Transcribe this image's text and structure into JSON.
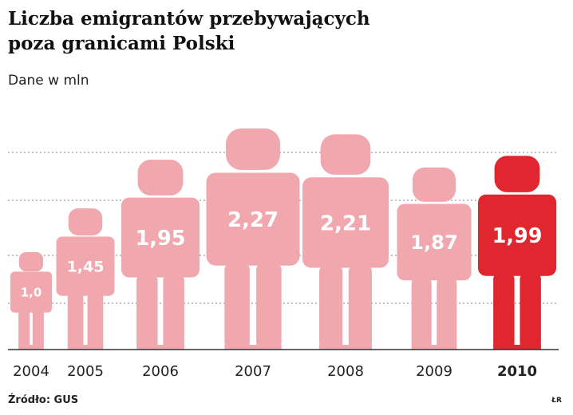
{
  "title_line1": "Liczba emigrantów przebywających",
  "title_line2": "poza granicami Polski",
  "subtitle": "Dane w mln",
  "source": "Źródło: GUS",
  "credit": "ŁR",
  "colors": {
    "default_bar": "#f0a7ae",
    "highlight_bar": "#e0272f",
    "label_text": "#ffffff",
    "gridline": "#9a9a9a",
    "axis": "#333333"
  },
  "chart_data": {
    "type": "bar",
    "categories": [
      "2004",
      "2005",
      "2006",
      "2007",
      "2008",
      "2009",
      "2010"
    ],
    "values": [
      1.0,
      1.45,
      1.95,
      2.27,
      2.21,
      1.87,
      1.99
    ],
    "value_labels": [
      "1,0",
      "1,45",
      "1,95",
      "2,27",
      "2,21",
      "1,87",
      "1,99"
    ],
    "highlight": "2010",
    "mark_shape": "human-figure",
    "title": "Liczba emigrantów przebywających poza granicami Polski",
    "subtitle": "Dane w mln",
    "grid": true,
    "legend": "none"
  }
}
